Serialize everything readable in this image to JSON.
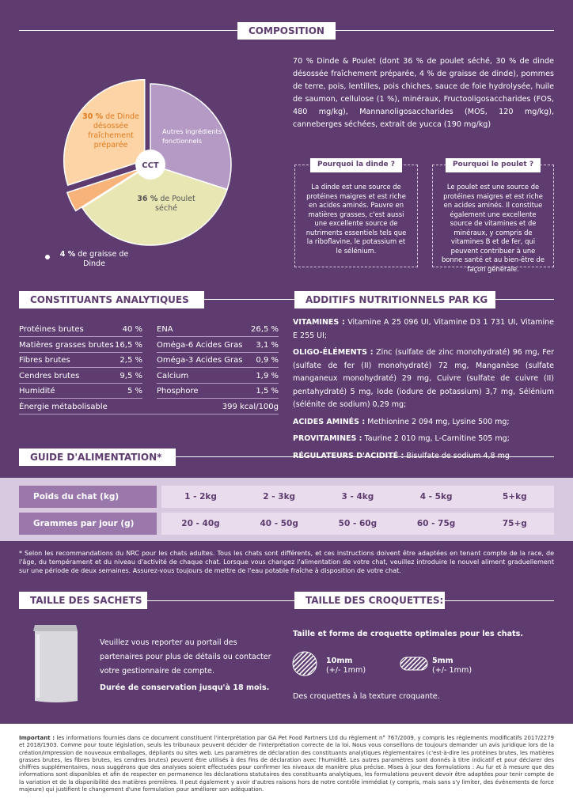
{
  "composition": {
    "title": "COMPOSITION",
    "pie": {
      "center_label": "CCT",
      "slices": [
        {
          "value": 30,
          "text": "Autres ingrédients fonctionnels",
          "color": "#b49ac4"
        },
        {
          "value": 36,
          "pct_label": "36 %",
          "text": "de Poulet séché",
          "color": "#e8e7b4"
        },
        {
          "value": 4,
          "pct_label": "4 %",
          "text": "de graisse de Dinde",
          "color": "#f7b37a"
        },
        {
          "value": 30,
          "pct_label": "30 %",
          "text": "de Dinde désossée fraîchement préparée",
          "color": "#fdd4a6"
        }
      ]
    },
    "ingredients": "70 % Dinde & Poulet (dont 36 % de poulet séché, 30 % de dinde désossée fraîchement préparée, 4 % de graisse de dinde), pommes de terre, pois, lentilles, pois chiches, sauce de foie hydrolysée, huile de saumon, cellulose (1 %), minéraux, Fructooligosaccharides (FOS, 480 mg/kg), Mannanoligosaccharides (MOS, 120 mg/kg), canneberges séchées, extrait de yucca (190 mg/kg)",
    "boxes": [
      {
        "title": "Pourquoi la dinde ?",
        "text": "La dinde est une source de protéines maigres et est riche en acides aminés. Pauvre en matières grasses, c'est aussi une excellente source de nutriments essentiels tels que la riboflavine, le potassium et le sélénium."
      },
      {
        "title": "Pourquoi le poulet ?",
        "text": "Le poulet est une source de protéines maigres et est riche en acides aminés. Il constitue également une excellente source de vitamines et de minéraux, y compris de vitamines B et de fer, qui peuvent contribuer à une bonne santé et au bien-être de façon générale."
      }
    ]
  },
  "analytical": {
    "title": "CONSTITUANTS ANALYTIQUES",
    "rows": [
      [
        "Protéines brutes",
        "40 %",
        "ENA",
        "26,5 %"
      ],
      [
        "Matières grasses brutes",
        "16,5 %",
        "Oméga-6 Acides Gras",
        "3,1 %"
      ],
      [
        "Fibres brutes",
        "2,5 %",
        "Oméga-3 Acides Gras",
        "0,9 %"
      ],
      [
        "Cendres brutes",
        "9,5 %",
        "Calcium",
        "1,9 %"
      ],
      [
        "Humidité",
        "5 %",
        "Phosphore",
        "1,5 %"
      ]
    ],
    "energy": {
      "name": "Énergie métabolisable",
      "value": "399 kcal/100g"
    }
  },
  "additives": {
    "title": "ADDITIFS NUTRITIONNELS PAR KG",
    "items": [
      {
        "label": "VITAMINES :",
        "text": "Vitamine A 25 096 UI, Vitamine D3 1 731 UI, Vitamine E 255 UI;"
      },
      {
        "label": "OLIGO-ÉLÉMENTS :",
        "text": "Zinc (sulfate de zinc monohydraté) 96 mg, Fer (sulfate de fer (II) monohydraté) 72 mg, Manganèse (sulfate manganeux monohydraté) 29 mg, Cuivre (sulfate de cuivre (II) pentahydraté) 5 mg, Iode (iodure de potassium) 3,7 mg, Sélénium (sélénite de sodium) 0,29 mg;"
      },
      {
        "label": "ACIDES AMINÉS :",
        "text": "Methionine 2 094 mg, Lysine 500 mg;"
      },
      {
        "label": "PROVITAMINES :",
        "text": "Taurine 2 010 mg, L-Carnitine 505 mg;"
      },
      {
        "label": "RÉGULATEURS D'ACIDITÉ :",
        "text": "Bisulfate de sodium 4,8 mg"
      }
    ]
  },
  "feeding": {
    "title": "GUIDE D'ALIMENTATION*",
    "weight_label": "Poids du chat (kg)",
    "weights": [
      "1 - 2kg",
      "2 - 3kg",
      "3 - 4kg",
      "4 - 5kg",
      "5+kg"
    ],
    "amount_label": "Grammes par jour (g)",
    "amounts": [
      "20 - 40g",
      "40 - 50g",
      "50 - 60g",
      "60 - 75g",
      "75+g"
    ],
    "footnote": "* Selon les recommandations du NRC pour les chats adultes. Tous les chats sont différents, et ces instructions doivent être adaptées en tenant compte de la race, de l'âge, du tempérament et du niveau d'activité de chaque chat. Lorsque vous changez l'alimentation de votre chat, veuillez introduire le nouvel aliment graduellement sur une période de deux semaines. Assurez-vous toujours de mettre de l'eau potable fraîche à disposition de votre chat."
  },
  "bags": {
    "title": "TAILLE DES SACHETS",
    "text": "Veuillez vous reporter au portail des partenaires pour plus de détails ou contacter votre gestionnaire de compte.",
    "shelf_life": "Durée de conservation jusqu'à 18 mois."
  },
  "kibble": {
    "title": "TAILLE DES CROQUETTES:",
    "subtitle": "Taille et forme de croquette optimales pour les chats.",
    "items": [
      {
        "size": "10mm",
        "tolerance": "(+/- 1mm)"
      },
      {
        "size": "5mm",
        "tolerance": "(+/- 1mm)"
      }
    ],
    "note": "Des croquettes à la texture croquante."
  },
  "disclaimer": {
    "label": "Important :",
    "text": "les informations fournies dans ce document constituent l'interprétation par GA Pet Food Partners Ltd du règlement n° 767/2009, y compris les règlements modificatifs 2017/2279 et 2018/1903. Comme pour toute législation, seuls les tribunaux peuvent décider de l'interprétation correcte de la loi. Nous vous conseillons de toujours demander un avis juridique lors de la création/impression de nouveaux emballages, dépliants ou sites web. Les paramètres de déclaration des constituants analytiques réglementaires (c'est-à-dire les protéines brutes, les matières grasses brutes, les fibres brutes, les cendres brutes) peuvent être utilisés à des fins de déclaration avec l'humidité. Les autres paramètres sont donnés à titre indicatif et pour déclarer des chiffres supplémentaires, nous suggérons que des analyses soient effectuées pour confirmer les niveaux de manière plus précise. Mises à jour des formulations : Au fur et à mesure que des informations sont disponibles et afin de respecter en permanence les déclarations statutaires des constituants analytiques, les formulations peuvent devoir être adaptées pour tenir compte de la variation et de la disponibilité des matières premières. Il peut également y avoir d'autres raisons hors de notre contrôle immédiat (y compris, mais sans s'y limiter, des événements de force majeure) qui justifient le changement d'une formulation pour améliorer son adéquation."
  }
}
